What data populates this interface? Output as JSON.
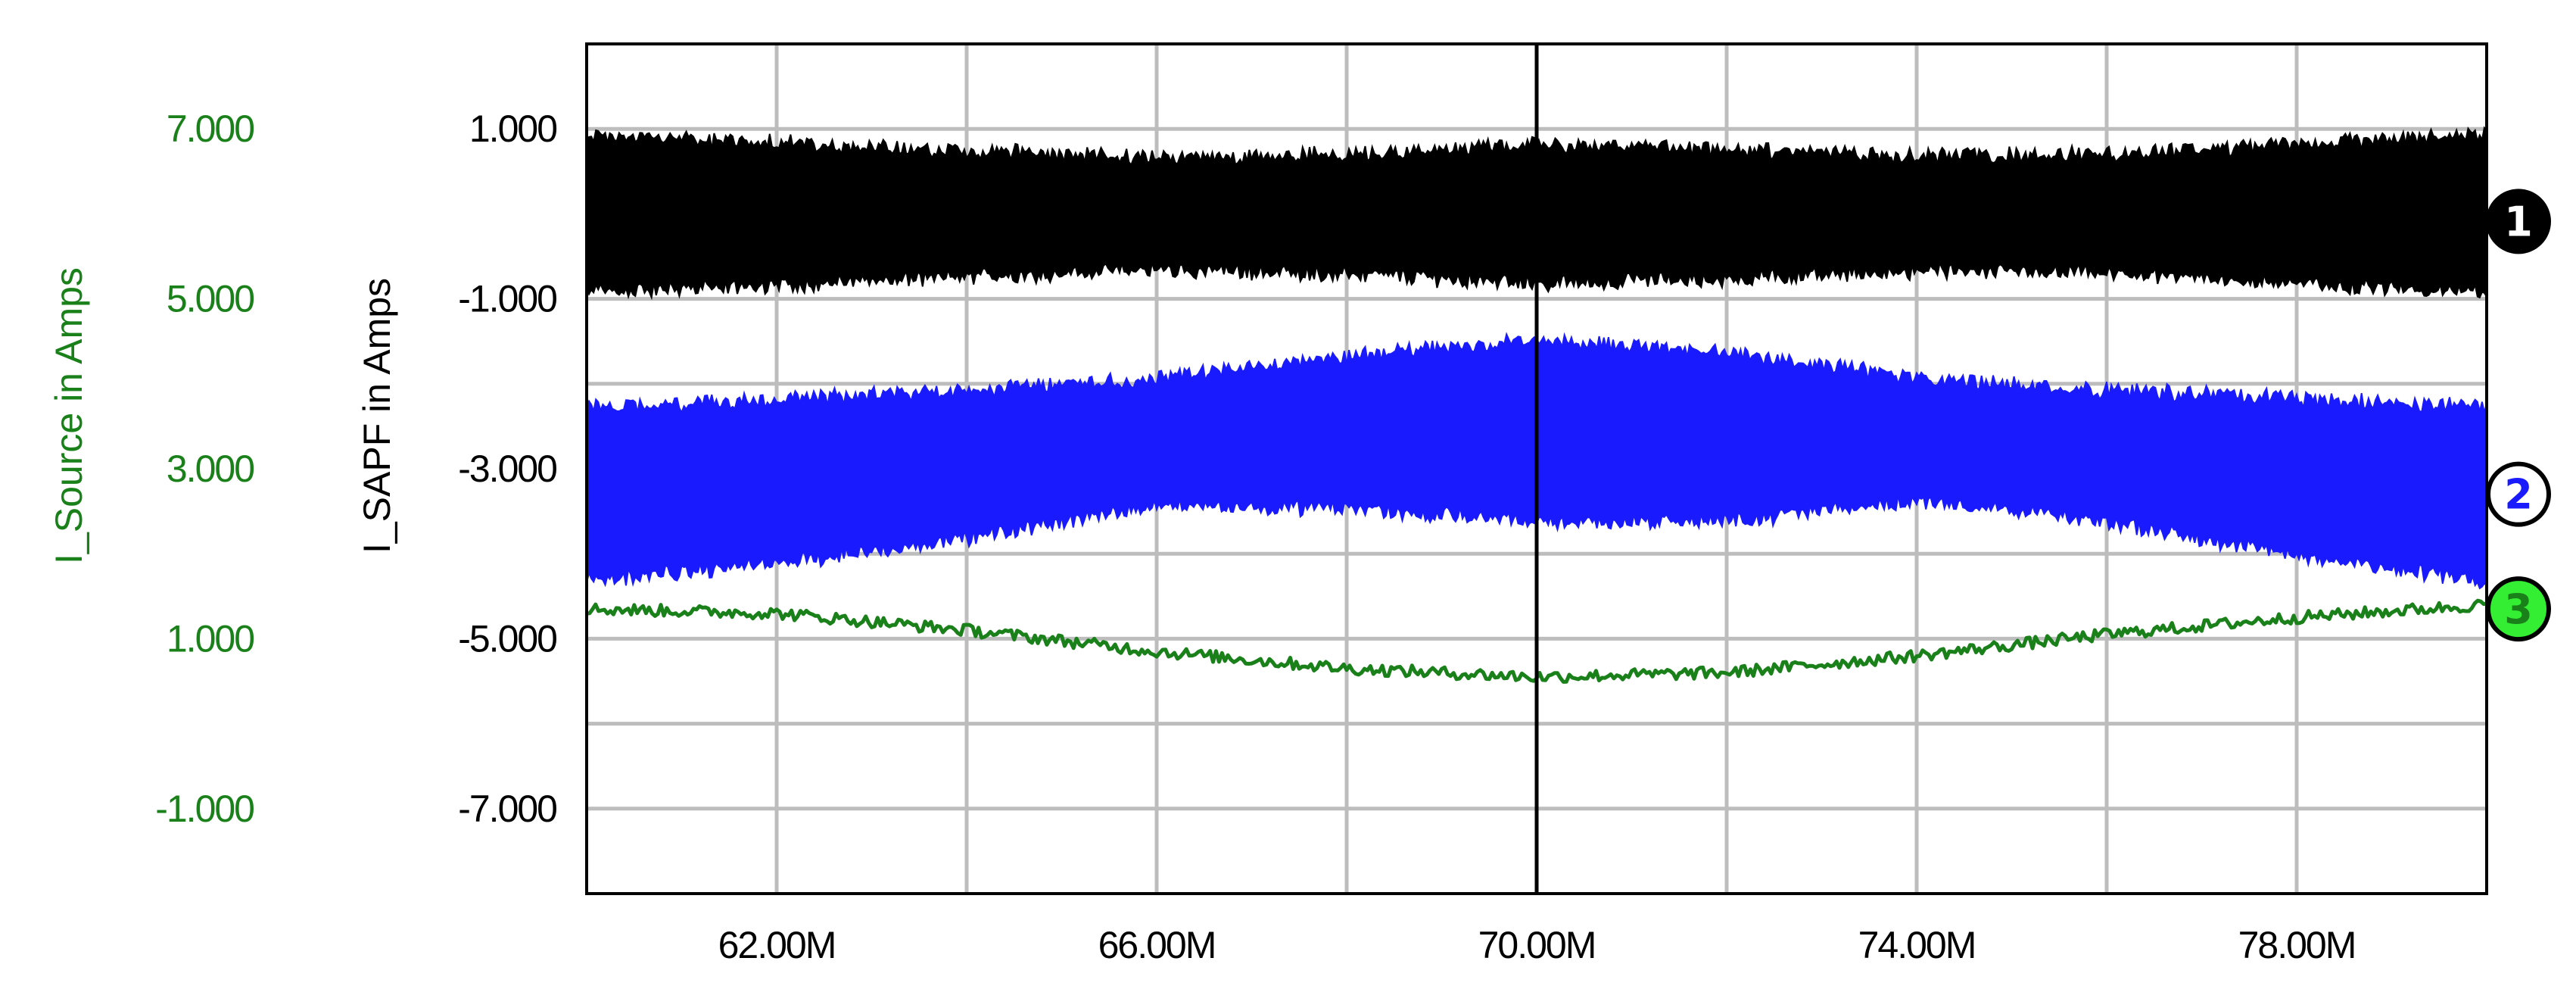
{
  "chart_data": {
    "type": "line",
    "xlabel": "",
    "xlim": [
      60.0,
      80.0
    ],
    "x_tick_values": [
      62,
      66,
      70,
      74,
      78
    ],
    "x_tick_labels": [
      "62.00M",
      "66.00M",
      "70.00M",
      "74.00M",
      "78.00M"
    ],
    "cursor_x": 70.0,
    "grid": true,
    "colors": {
      "black": "#000000",
      "blue": "#1a1aff",
      "green": "#1a801a",
      "grid": "#bdbdbd",
      "marker3_fill": "#33ee33"
    },
    "y_axes": [
      {
        "label": "I_SAPF in Amps",
        "ylim": [
          -8.0,
          2.0
        ],
        "tick_values": [
          1,
          -1,
          -3,
          -5,
          -7
        ],
        "tick_labels": [
          "1.000",
          "-1.000",
          "-3.000",
          "-5.000",
          "-7.000"
        ],
        "color": "#000000"
      },
      {
        "label": "I_Source in Amps",
        "ylim": [
          -2.0,
          8.0
        ],
        "tick_values": [
          7,
          5,
          3,
          1,
          -1
        ],
        "tick_labels": [
          "7.000",
          "5.000",
          "3.000",
          "1.000",
          "-1.000"
        ],
        "color": "#1a801a"
      }
    ],
    "series": [
      {
        "marker": "1",
        "axis": 0,
        "color": "#000000",
        "style": "noise-band",
        "center": 0.0,
        "x": [
          60,
          62,
          64,
          66,
          68,
          70,
          72,
          74,
          76,
          78,
          80
        ],
        "half_width": [
          1.0,
          0.92,
          0.82,
          0.74,
          0.78,
          0.9,
          0.84,
          0.76,
          0.78,
          0.9,
          1.0
        ]
      },
      {
        "marker": "2",
        "axis": 0,
        "color": "#1a1aff",
        "style": "noise-band",
        "x": [
          60,
          62,
          64,
          66,
          68,
          70,
          72,
          74,
          76,
          78,
          80
        ],
        "upper": [
          -2.2,
          -2.1,
          -2.0,
          -1.85,
          -1.6,
          -1.4,
          -1.55,
          -1.85,
          -2.0,
          -2.1,
          -2.2
        ],
        "lower": [
          -4.4,
          -4.2,
          -3.9,
          -3.5,
          -3.55,
          -3.7,
          -3.7,
          -3.45,
          -3.7,
          -4.1,
          -4.4
        ]
      },
      {
        "marker": "3",
        "axis": 1,
        "color": "#1a801a",
        "style": "line",
        "x": [
          60,
          62,
          64,
          66,
          68,
          70,
          72,
          74,
          76,
          78,
          80
        ],
        "values": [
          1.35,
          1.3,
          1.1,
          0.85,
          0.65,
          0.55,
          0.6,
          0.8,
          1.05,
          1.25,
          1.4
        ]
      }
    ]
  }
}
